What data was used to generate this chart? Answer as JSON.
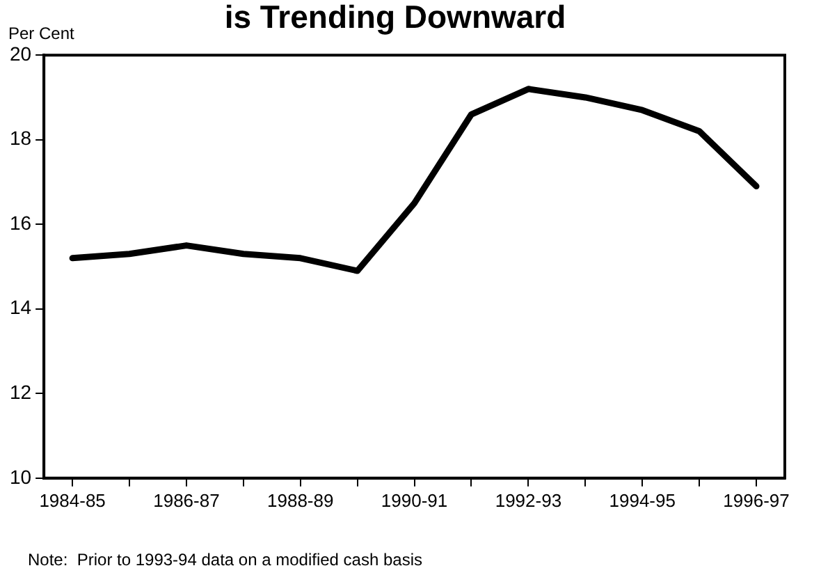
{
  "chart_data": {
    "type": "line",
    "title": "is Trending Downward",
    "ylabel": "Per Cent",
    "categories": [
      "1984-85",
      null,
      "1986-87",
      null,
      "1988-89",
      null,
      "1990-91",
      null,
      "1992-93",
      null,
      "1994-95",
      null,
      "1996-97"
    ],
    "series": [
      {
        "color": "#000000",
        "values": [
          15.2,
          15.3,
          15.5,
          15.3,
          15.2,
          14.9,
          16.5,
          18.6,
          19.2,
          19.0,
          18.7,
          18.2,
          16.9
        ]
      }
    ],
    "ylim": [
      10,
      20
    ],
    "yticks": [
      10,
      12,
      14,
      16,
      18,
      20
    ],
    "grid": false,
    "legend": false,
    "marker": "none",
    "line_style": "solid",
    "annotations": [
      "Note:  Prior to 1993-94 data on a modified cash basis"
    ]
  }
}
